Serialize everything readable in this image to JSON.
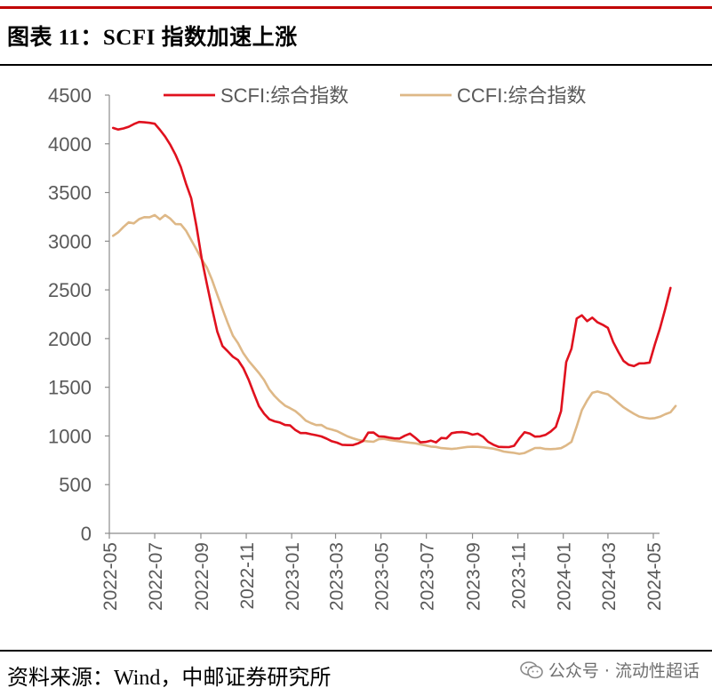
{
  "header": {
    "title": "图表 11：SCFI 指数加速上涨"
  },
  "footer": {
    "source": "资料来源：Wind，中邮证券研究所",
    "watermark": "公众号 · 流动性超话"
  },
  "chart_data": {
    "type": "line",
    "title": "",
    "xlabel": "",
    "ylabel": "",
    "ylim": [
      0,
      4500
    ],
    "yticks": [
      "0",
      "500",
      "1000",
      "1500",
      "2000",
      "2500",
      "3000",
      "3500",
      "4000",
      "4500"
    ],
    "xticks": [
      "2022-05",
      "2022-07",
      "2022-09",
      "2022-11",
      "2023-01",
      "2023-03",
      "2023-05",
      "2023-07",
      "2023-09",
      "2023-11",
      "2024-01",
      "2024-03",
      "2024-05"
    ],
    "grid": false,
    "legend_position": "top",
    "series": [
      {
        "name": "SCFI:综合指数",
        "color": "#e0111e",
        "points": [
          [
            "2022-05-06",
            4163
          ],
          [
            "2022-05-13",
            4147
          ],
          [
            "2022-05-20",
            4158
          ],
          [
            "2022-05-27",
            4175
          ],
          [
            "2022-06-03",
            4202
          ],
          [
            "2022-06-10",
            4224
          ],
          [
            "2022-06-17",
            4221
          ],
          [
            "2022-06-24",
            4215
          ],
          [
            "2022-07-01",
            4206
          ],
          [
            "2022-07-08",
            4144
          ],
          [
            "2022-07-15",
            4074
          ],
          [
            "2022-07-22",
            3988
          ],
          [
            "2022-07-29",
            3887
          ],
          [
            "2022-08-05",
            3762
          ],
          [
            "2022-08-12",
            3593
          ],
          [
            "2022-08-19",
            3441
          ],
          [
            "2022-08-26",
            3154
          ],
          [
            "2022-09-02",
            2828
          ],
          [
            "2022-09-09",
            2562
          ],
          [
            "2022-09-16",
            2313
          ],
          [
            "2022-09-23",
            2073
          ],
          [
            "2022-09-30",
            1923
          ],
          [
            "2022-10-07",
            1870
          ],
          [
            "2022-10-14",
            1814
          ],
          [
            "2022-10-21",
            1779
          ],
          [
            "2022-10-28",
            1697
          ],
          [
            "2022-11-04",
            1580
          ],
          [
            "2022-11-11",
            1442
          ],
          [
            "2022-11-18",
            1306
          ],
          [
            "2022-11-25",
            1229
          ],
          [
            "2022-12-02",
            1171
          ],
          [
            "2022-12-09",
            1150
          ],
          [
            "2022-12-16",
            1138
          ],
          [
            "2022-12-23",
            1113
          ],
          [
            "2022-12-30",
            1108
          ],
          [
            "2023-01-06",
            1061
          ],
          [
            "2023-01-13",
            1030
          ],
          [
            "2023-01-20",
            1030
          ],
          [
            "2023-01-27",
            1018
          ],
          [
            "2023-02-03",
            1008
          ],
          [
            "2023-02-10",
            995
          ],
          [
            "2023-02-17",
            972
          ],
          [
            "2023-02-24",
            946
          ],
          [
            "2023-03-03",
            931
          ],
          [
            "2023-03-10",
            909
          ],
          [
            "2023-03-17",
            906
          ],
          [
            "2023-03-24",
            906
          ],
          [
            "2023-03-31",
            923
          ],
          [
            "2023-04-07",
            948
          ],
          [
            "2023-04-14",
            1034
          ],
          [
            "2023-04-21",
            1035
          ],
          [
            "2023-04-28",
            996
          ],
          [
            "2023-05-05",
            993
          ],
          [
            "2023-05-12",
            983
          ],
          [
            "2023-05-19",
            975
          ],
          [
            "2023-05-26",
            973
          ],
          [
            "2023-06-02",
            1002
          ],
          [
            "2023-06-09",
            1024
          ],
          [
            "2023-06-16",
            982
          ],
          [
            "2023-06-23",
            935
          ],
          [
            "2023-06-30",
            938
          ],
          [
            "2023-07-07",
            952
          ],
          [
            "2023-07-14",
            934
          ],
          [
            "2023-07-21",
            979
          ],
          [
            "2023-07-28",
            975
          ],
          [
            "2023-08-04",
            1029
          ],
          [
            "2023-08-11",
            1038
          ],
          [
            "2023-08-18",
            1040
          ],
          [
            "2023-08-25",
            1032
          ],
          [
            "2023-09-01",
            1013
          ],
          [
            "2023-09-08",
            1023
          ],
          [
            "2023-09-15",
            993
          ],
          [
            "2023-09-22",
            940
          ],
          [
            "2023-09-29",
            910
          ],
          [
            "2023-10-06",
            888
          ],
          [
            "2023-10-13",
            886
          ],
          [
            "2023-10-20",
            885
          ],
          [
            "2023-10-27",
            899
          ],
          [
            "2023-11-03",
            975
          ],
          [
            "2023-11-10",
            1039
          ],
          [
            "2023-11-17",
            1025
          ],
          [
            "2023-11-24",
            993
          ],
          [
            "2023-12-01",
            996
          ],
          [
            "2023-12-08",
            1010
          ],
          [
            "2023-12-15",
            1045
          ],
          [
            "2023-12-22",
            1093
          ],
          [
            "2023-12-29",
            1255
          ],
          [
            "2024-01-05",
            1759
          ],
          [
            "2024-01-12",
            1896
          ],
          [
            "2024-01-19",
            2206
          ],
          [
            "2024-01-26",
            2239
          ],
          [
            "2024-02-02",
            2179
          ],
          [
            "2024-02-09",
            2215
          ],
          [
            "2024-02-16",
            2167
          ],
          [
            "2024-02-23",
            2141
          ],
          [
            "2024-03-01",
            2109
          ],
          [
            "2024-03-08",
            1965
          ],
          [
            "2024-03-15",
            1862
          ],
          [
            "2024-03-22",
            1770
          ],
          [
            "2024-03-29",
            1731
          ],
          [
            "2024-04-05",
            1717
          ],
          [
            "2024-04-12",
            1745
          ],
          [
            "2024-04-19",
            1746
          ],
          [
            "2024-04-26",
            1753
          ],
          [
            "2024-05-03",
            1940
          ],
          [
            "2024-05-10",
            2106
          ],
          [
            "2024-05-17",
            2305
          ],
          [
            "2024-05-24",
            2520
          ]
        ]
      },
      {
        "name": "CCFI:综合指数",
        "color": "#deb887",
        "points": [
          [
            "2022-05-06",
            3055
          ],
          [
            "2022-05-13",
            3092
          ],
          [
            "2022-05-20",
            3146
          ],
          [
            "2022-05-27",
            3194
          ],
          [
            "2022-06-03",
            3183
          ],
          [
            "2022-06-10",
            3227
          ],
          [
            "2022-06-17",
            3247
          ],
          [
            "2022-06-24",
            3246
          ],
          [
            "2022-07-01",
            3268
          ],
          [
            "2022-07-08",
            3225
          ],
          [
            "2022-07-15",
            3269
          ],
          [
            "2022-07-22",
            3230
          ],
          [
            "2022-07-29",
            3176
          ],
          [
            "2022-08-05",
            3174
          ],
          [
            "2022-08-12",
            3109
          ],
          [
            "2022-08-19",
            3012
          ],
          [
            "2022-08-26",
            2915
          ],
          [
            "2022-09-02",
            2815
          ],
          [
            "2022-09-09",
            2730
          ],
          [
            "2022-09-16",
            2603
          ],
          [
            "2022-09-23",
            2452
          ],
          [
            "2022-09-30",
            2304
          ],
          [
            "2022-10-07",
            2162
          ],
          [
            "2022-10-14",
            2030
          ],
          [
            "2022-10-21",
            1952
          ],
          [
            "2022-10-28",
            1850
          ],
          [
            "2022-11-04",
            1773
          ],
          [
            "2022-11-11",
            1711
          ],
          [
            "2022-11-18",
            1647
          ],
          [
            "2022-11-25",
            1575
          ],
          [
            "2022-12-02",
            1477
          ],
          [
            "2022-12-09",
            1410
          ],
          [
            "2022-12-16",
            1357
          ],
          [
            "2022-12-23",
            1312
          ],
          [
            "2022-12-30",
            1285
          ],
          [
            "2023-01-06",
            1255
          ],
          [
            "2023-01-13",
            1209
          ],
          [
            "2023-01-20",
            1157
          ],
          [
            "2023-01-27",
            1132
          ],
          [
            "2023-02-03",
            1112
          ],
          [
            "2023-02-10",
            1113
          ],
          [
            "2023-02-17",
            1080
          ],
          [
            "2023-02-24",
            1065
          ],
          [
            "2023-03-03",
            1050
          ],
          [
            "2023-03-10",
            1023
          ],
          [
            "2023-03-17",
            996
          ],
          [
            "2023-03-24",
            977
          ],
          [
            "2023-03-31",
            960
          ],
          [
            "2023-04-07",
            950
          ],
          [
            "2023-04-14",
            944
          ],
          [
            "2023-04-21",
            940
          ],
          [
            "2023-04-28",
            967
          ],
          [
            "2023-05-05",
            970
          ],
          [
            "2023-05-12",
            959
          ],
          [
            "2023-05-19",
            952
          ],
          [
            "2023-05-26",
            944
          ],
          [
            "2023-06-02",
            937
          ],
          [
            "2023-06-09",
            930
          ],
          [
            "2023-06-16",
            925
          ],
          [
            "2023-06-23",
            913
          ],
          [
            "2023-06-30",
            903
          ],
          [
            "2023-07-07",
            891
          ],
          [
            "2023-07-14",
            887
          ],
          [
            "2023-07-21",
            875
          ],
          [
            "2023-07-28",
            871
          ],
          [
            "2023-08-04",
            866
          ],
          [
            "2023-08-11",
            872
          ],
          [
            "2023-08-18",
            880
          ],
          [
            "2023-08-25",
            887
          ],
          [
            "2023-09-01",
            889
          ],
          [
            "2023-09-08",
            888
          ],
          [
            "2023-09-15",
            884
          ],
          [
            "2023-09-22",
            877
          ],
          [
            "2023-09-29",
            870
          ],
          [
            "2023-10-06",
            856
          ],
          [
            "2023-10-13",
            840
          ],
          [
            "2023-10-20",
            832
          ],
          [
            "2023-10-27",
            826
          ],
          [
            "2023-11-03",
            816
          ],
          [
            "2023-11-10",
            825
          ],
          [
            "2023-11-17",
            851
          ],
          [
            "2023-11-24",
            876
          ],
          [
            "2023-12-01",
            877
          ],
          [
            "2023-12-08",
            866
          ],
          [
            "2023-12-15",
            864
          ],
          [
            "2023-12-22",
            868
          ],
          [
            "2023-12-29",
            874
          ],
          [
            "2024-01-05",
            903
          ],
          [
            "2024-01-12",
            939
          ],
          [
            "2024-01-19",
            1098
          ],
          [
            "2024-01-26",
            1265
          ],
          [
            "2024-02-02",
            1364
          ],
          [
            "2024-02-09",
            1443
          ],
          [
            "2024-02-16",
            1457
          ],
          [
            "2024-02-23",
            1441
          ],
          [
            "2024-03-01",
            1428
          ],
          [
            "2024-03-08",
            1384
          ],
          [
            "2024-03-15",
            1338
          ],
          [
            "2024-03-22",
            1294
          ],
          [
            "2024-03-29",
            1260
          ],
          [
            "2024-04-05",
            1228
          ],
          [
            "2024-04-12",
            1199
          ],
          [
            "2024-04-19",
            1187
          ],
          [
            "2024-04-26",
            1178
          ],
          [
            "2024-05-03",
            1183
          ],
          [
            "2024-05-10",
            1198
          ],
          [
            "2024-05-17",
            1223
          ],
          [
            "2024-05-24",
            1243
          ],
          [
            "2024-05-31",
            1308
          ]
        ]
      }
    ]
  }
}
